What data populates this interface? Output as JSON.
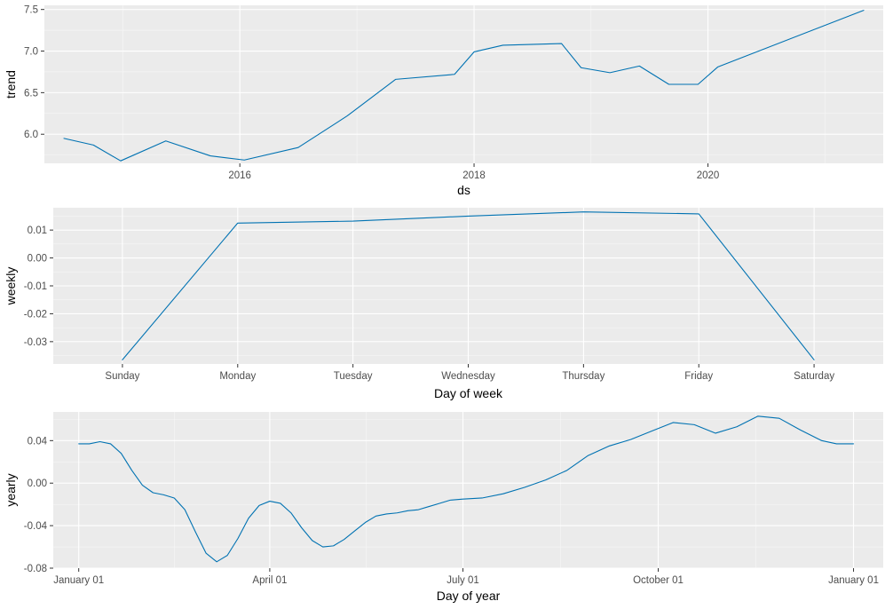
{
  "colors": {
    "line": "#0072B2",
    "panel": "#EBEBEB",
    "grid": "#FFFFFF"
  },
  "chart_data": [
    {
      "type": "line",
      "panel": "trend",
      "xlabel": "ds",
      "ylabel": "trend",
      "x_type": "date",
      "xlim": [
        "2014-05-01",
        "2021-07-01"
      ],
      "ylim": [
        5.65,
        7.55
      ],
      "x_ticks": [
        "2016-01-01",
        "2018-01-01",
        "2020-01-01"
      ],
      "x_tick_labels": [
        "2016",
        "2018",
        "2020"
      ],
      "y_ticks": [
        6.0,
        6.5,
        7.0,
        7.5
      ],
      "y_tick_labels": [
        "6.0",
        "6.5",
        "7.0",
        "7.5"
      ],
      "grid": true,
      "series": [
        {
          "x": [
            "2014-07-01",
            "2014-10-01",
            "2014-12-25",
            "2015-05-15",
            "2015-10-01",
            "2016-01-15",
            "2016-07-01",
            "2016-12-01",
            "2017-05-01",
            "2017-11-01",
            "2018-01-01",
            "2018-04-01",
            "2018-10-01",
            "2018-12-01",
            "2019-03-01",
            "2019-06-01",
            "2019-09-01",
            "2019-12-01",
            "2020-02-01",
            "2021-05-01"
          ],
          "y": [
            5.95,
            5.87,
            5.68,
            5.92,
            5.74,
            5.69,
            5.84,
            6.22,
            6.66,
            6.72,
            6.99,
            7.07,
            7.09,
            6.8,
            6.74,
            6.82,
            6.6,
            6.6,
            6.81,
            7.49
          ]
        }
      ]
    },
    {
      "type": "line",
      "panel": "weekly",
      "xlabel": "Day of week",
      "ylabel": "weekly",
      "categories": [
        "Sunday",
        "Monday",
        "Tuesday",
        "Wednesday",
        "Thursday",
        "Friday",
        "Saturday"
      ],
      "ylim": [
        -0.038,
        0.018
      ],
      "y_ticks": [
        0.01,
        0.0,
        -0.01,
        -0.02,
        -0.03
      ],
      "y_tick_labels": [
        "0.01",
        "0.00",
        "-0.01",
        "-0.02",
        "-0.03"
      ],
      "grid": true,
      "series": [
        {
          "values": [
            -0.0365,
            0.0125,
            0.0132,
            0.015,
            0.0165,
            0.0158,
            -0.0365
          ]
        }
      ]
    },
    {
      "type": "line",
      "panel": "yearly",
      "xlabel": "Day of year",
      "ylabel": "yearly",
      "x_type": "day_of_year",
      "xlim": [
        -12,
        379
      ],
      "ylim": [
        -0.08,
        0.067
      ],
      "x_ticks": [
        0,
        90,
        181,
        273,
        365
      ],
      "x_tick_labels": [
        "January 01",
        "April 01",
        "July 01",
        "October 01",
        "January 01"
      ],
      "y_ticks": [
        0.04,
        0.0,
        -0.04,
        -0.08
      ],
      "y_tick_labels": [
        "0.04",
        "0.00",
        "-0.04",
        "-0.08"
      ],
      "grid": true,
      "series": [
        {
          "x": [
            0,
            5,
            10,
            15,
            20,
            25,
            30,
            35,
            40,
            45,
            50,
            55,
            60,
            65,
            70,
            75,
            80,
            85,
            90,
            95,
            100,
            105,
            110,
            115,
            120,
            125,
            130,
            135,
            140,
            145,
            150,
            155,
            160,
            165,
            170,
            175,
            181,
            190,
            200,
            210,
            220,
            230,
            240,
            250,
            260,
            270,
            280,
            290,
            300,
            310,
            320,
            330,
            340,
            350,
            357,
            365
          ],
          "y": [
            0.037,
            0.037,
            0.039,
            0.037,
            0.028,
            0.012,
            -0.002,
            -0.009,
            -0.011,
            -0.014,
            -0.025,
            -0.046,
            -0.066,
            -0.074,
            -0.068,
            -0.052,
            -0.033,
            -0.021,
            -0.017,
            -0.019,
            -0.028,
            -0.042,
            -0.054,
            -0.06,
            -0.059,
            -0.053,
            -0.045,
            -0.037,
            -0.031,
            -0.029,
            -0.028,
            -0.026,
            -0.025,
            -0.022,
            -0.019,
            -0.016,
            -0.015,
            -0.014,
            -0.01,
            -0.004,
            0.003,
            0.012,
            0.026,
            0.035,
            0.041,
            0.049,
            0.057,
            0.055,
            0.047,
            0.053,
            0.063,
            0.061,
            0.05,
            0.04,
            0.037,
            0.037
          ]
        }
      ]
    }
  ]
}
